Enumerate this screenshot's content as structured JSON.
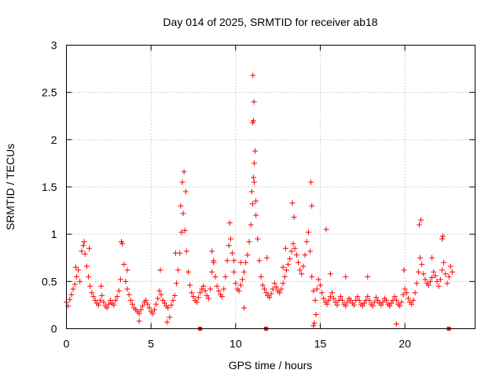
{
  "colors": {
    "series": "#ff0000",
    "grid": "#a0a0a0",
    "axis": "#000000"
  },
  "chart_data": {
    "type": "scatter",
    "title": "Day 014 of 2025, SRMTID for receiver ab18",
    "xlabel": "GPS time / hours",
    "ylabel": "SRMTID / TECUs",
    "xlim": [
      0,
      24.15
    ],
    "ylim": [
      0,
      3
    ],
    "x_ticks": [
      0,
      5,
      10,
      15,
      20
    ],
    "x_tick_labels": [
      "0",
      "5",
      "10",
      "15",
      "20"
    ],
    "y_ticks": [
      0,
      0.5,
      1,
      1.5,
      2,
      2.5,
      3
    ],
    "y_tick_labels": [
      "0",
      "0.5",
      "1",
      "1.5",
      "2",
      "2.5",
      "3"
    ],
    "grid": true,
    "marker": "plus",
    "series": [
      {
        "name": "SRMTID",
        "color": "#ff0000",
        "points": [
          [
            0.0,
            0.28
          ],
          [
            0.1,
            0.24
          ],
          [
            0.2,
            0.31
          ],
          [
            0.3,
            0.36
          ],
          [
            0.4,
            0.42
          ],
          [
            0.5,
            0.47
          ],
          [
            0.6,
            0.55
          ],
          [
            0.7,
            0.62
          ],
          [
            0.8,
            0.5
          ],
          [
            0.9,
            0.82
          ],
          [
            1.0,
            0.88
          ],
          [
            1.1,
            0.79
          ],
          [
            1.2,
            0.66
          ],
          [
            1.3,
            0.55
          ],
          [
            1.4,
            0.45
          ],
          [
            1.5,
            0.38
          ],
          [
            1.6,
            0.34
          ],
          [
            1.7,
            0.3
          ],
          [
            1.8,
            0.27
          ],
          [
            1.9,
            0.25
          ],
          [
            2.0,
            0.3
          ],
          [
            2.1,
            0.35
          ],
          [
            2.2,
            0.28
          ],
          [
            2.3,
            0.24
          ],
          [
            2.4,
            0.22
          ],
          [
            2.5,
            0.26
          ],
          [
            2.6,
            0.3
          ],
          [
            2.7,
            0.27
          ],
          [
            2.8,
            0.25
          ],
          [
            2.9,
            0.3
          ],
          [
            3.0,
            0.34
          ],
          [
            3.1,
            0.4
          ],
          [
            3.2,
            0.52
          ],
          [
            3.3,
            0.9
          ],
          [
            3.4,
            0.68
          ],
          [
            3.5,
            0.5
          ],
          [
            3.6,
            0.42
          ],
          [
            3.7,
            0.36
          ],
          [
            3.8,
            0.3
          ],
          [
            3.9,
            0.26
          ],
          [
            4.0,
            0.22
          ],
          [
            4.1,
            0.2
          ],
          [
            4.2,
            0.18
          ],
          [
            4.3,
            0.16
          ],
          [
            4.4,
            0.2
          ],
          [
            4.5,
            0.24
          ],
          [
            4.6,
            0.28
          ],
          [
            4.7,
            0.3
          ],
          [
            4.8,
            0.26
          ],
          [
            4.9,
            0.22
          ],
          [
            5.0,
            0.18
          ],
          [
            5.1,
            0.16
          ],
          [
            5.2,
            0.2
          ],
          [
            5.3,
            0.26
          ],
          [
            5.4,
            0.32
          ],
          [
            5.5,
            0.4
          ],
          [
            5.6,
            0.36
          ],
          [
            5.7,
            0.3
          ],
          [
            5.8,
            0.27
          ],
          [
            5.9,
            0.24
          ],
          [
            6.0,
            0.22
          ],
          [
            6.1,
            0.12
          ],
          [
            6.2,
            0.25
          ],
          [
            6.3,
            0.3
          ],
          [
            6.4,
            0.35
          ],
          [
            6.5,
            0.48
          ],
          [
            6.6,
            0.62
          ],
          [
            6.7,
            0.8
          ],
          [
            6.8,
            1.02
          ],
          [
            6.9,
            1.22
          ],
          [
            7.0,
            1.04
          ],
          [
            7.1,
            0.82
          ],
          [
            7.2,
            0.6
          ],
          [
            7.3,
            0.46
          ],
          [
            7.4,
            0.38
          ],
          [
            7.5,
            0.34
          ],
          [
            7.6,
            0.3
          ],
          [
            7.7,
            0.28
          ],
          [
            7.8,
            0.33
          ],
          [
            7.9,
            0.38
          ],
          [
            8.0,
            0.42
          ],
          [
            8.1,
            0.45
          ],
          [
            8.2,
            0.4
          ],
          [
            8.3,
            0.35
          ],
          [
            8.4,
            0.32
          ],
          [
            8.5,
            0.42
          ],
          [
            8.6,
            0.6
          ],
          [
            8.7,
            0.7
          ],
          [
            8.8,
            0.55
          ],
          [
            8.9,
            0.45
          ],
          [
            9.0,
            0.4
          ],
          [
            9.1,
            0.36
          ],
          [
            9.2,
            0.34
          ],
          [
            9.3,
            0.42
          ],
          [
            9.4,
            0.55
          ],
          [
            9.5,
            0.72
          ],
          [
            9.6,
            0.88
          ],
          [
            9.7,
            0.95
          ],
          [
            9.8,
            0.8
          ],
          [
            9.9,
            0.6
          ],
          [
            10.0,
            0.48
          ],
          [
            10.1,
            0.42
          ],
          [
            10.2,
            0.4
          ],
          [
            10.3,
            0.46
          ],
          [
            10.4,
            0.52
          ],
          [
            10.5,
            0.6
          ],
          [
            10.6,
            0.7
          ],
          [
            10.7,
            0.78
          ],
          [
            10.8,
            0.92
          ],
          [
            10.9,
            1.1
          ],
          [
            11.0,
            1.32
          ],
          [
            11.1,
            1.55
          ],
          [
            11.2,
            1.2
          ],
          [
            11.3,
            0.95
          ],
          [
            11.4,
            0.72
          ],
          [
            11.5,
            0.55
          ],
          [
            11.6,
            0.46
          ],
          [
            11.7,
            0.42
          ],
          [
            11.8,
            0.38
          ],
          [
            11.9,
            0.35
          ],
          [
            12.0,
            0.33
          ],
          [
            12.1,
            0.37
          ],
          [
            12.2,
            0.42
          ],
          [
            12.3,
            0.48
          ],
          [
            12.4,
            0.44
          ],
          [
            12.5,
            0.4
          ],
          [
            12.6,
            0.38
          ],
          [
            12.7,
            0.42
          ],
          [
            12.8,
            0.48
          ],
          [
            12.9,
            0.55
          ],
          [
            13.0,
            0.62
          ],
          [
            13.1,
            0.68
          ],
          [
            13.2,
            0.74
          ],
          [
            13.3,
            0.82
          ],
          [
            13.4,
            0.9
          ],
          [
            13.5,
            0.85
          ],
          [
            13.6,
            0.78
          ],
          [
            13.7,
            0.7
          ],
          [
            13.8,
            0.62
          ],
          [
            13.9,
            0.58
          ],
          [
            14.0,
            0.66
          ],
          [
            14.1,
            0.78
          ],
          [
            14.2,
            0.92
          ],
          [
            14.3,
            1.02
          ],
          [
            14.4,
            0.82
          ],
          [
            14.5,
            0.55
          ],
          [
            14.6,
            0.4
          ],
          [
            14.7,
            0.3
          ],
          [
            14.8,
            0.42
          ],
          [
            14.9,
            0.52
          ],
          [
            15.0,
            0.46
          ],
          [
            15.1,
            0.38
          ],
          [
            15.2,
            0.32
          ],
          [
            15.3,
            0.28
          ],
          [
            15.4,
            0.26
          ],
          [
            15.5,
            0.3
          ],
          [
            15.6,
            0.34
          ],
          [
            15.7,
            0.38
          ],
          [
            15.8,
            0.32
          ],
          [
            15.9,
            0.28
          ],
          [
            16.0,
            0.25
          ],
          [
            16.1,
            0.3
          ],
          [
            16.2,
            0.34
          ],
          [
            16.3,
            0.3
          ],
          [
            16.4,
            0.26
          ],
          [
            16.5,
            0.24
          ],
          [
            16.6,
            0.28
          ],
          [
            16.7,
            0.32
          ],
          [
            16.8,
            0.3
          ],
          [
            16.9,
            0.27
          ],
          [
            17.0,
            0.25
          ],
          [
            17.1,
            0.3
          ],
          [
            17.2,
            0.34
          ],
          [
            17.3,
            0.3
          ],
          [
            17.4,
            0.26
          ],
          [
            17.5,
            0.24
          ],
          [
            17.6,
            0.27
          ],
          [
            17.7,
            0.3
          ],
          [
            17.8,
            0.34
          ],
          [
            17.9,
            0.3
          ],
          [
            18.0,
            0.26
          ],
          [
            18.1,
            0.24
          ],
          [
            18.2,
            0.28
          ],
          [
            18.3,
            0.33
          ],
          [
            18.4,
            0.3
          ],
          [
            18.5,
            0.27
          ],
          [
            18.6,
            0.25
          ],
          [
            18.7,
            0.28
          ],
          [
            18.8,
            0.32
          ],
          [
            18.9,
            0.3
          ],
          [
            19.0,
            0.26
          ],
          [
            19.1,
            0.24
          ],
          [
            19.2,
            0.27
          ],
          [
            19.3,
            0.3
          ],
          [
            19.4,
            0.34
          ],
          [
            19.5,
            0.3
          ],
          [
            19.6,
            0.26
          ],
          [
            19.7,
            0.24
          ],
          [
            19.8,
            0.28
          ],
          [
            19.9,
            0.36
          ],
          [
            20.0,
            0.42
          ],
          [
            20.1,
            0.38
          ],
          [
            20.2,
            0.32
          ],
          [
            20.3,
            0.28
          ],
          [
            20.4,
            0.26
          ],
          [
            20.5,
            0.3
          ],
          [
            20.6,
            0.38
          ],
          [
            20.7,
            0.48
          ],
          [
            20.8,
            0.6
          ],
          [
            20.9,
            0.75
          ],
          [
            21.0,
            0.68
          ],
          [
            21.1,
            0.58
          ],
          [
            21.2,
            0.52
          ],
          [
            21.3,
            0.48
          ],
          [
            21.4,
            0.46
          ],
          [
            21.5,
            0.5
          ],
          [
            21.6,
            0.54
          ],
          [
            21.7,
            0.6
          ],
          [
            21.8,
            0.56
          ],
          [
            21.9,
            0.5
          ],
          [
            22.0,
            0.45
          ],
          [
            22.1,
            0.52
          ],
          [
            22.2,
            0.62
          ],
          [
            22.3,
            0.7
          ],
          [
            22.4,
            0.58
          ],
          [
            22.5,
            0.48
          ],
          [
            22.6,
            0.55
          ],
          [
            22.7,
            0.66
          ],
          [
            22.8,
            0.6
          ],
          [
            0.55,
            0.65
          ],
          [
            1.05,
            0.92
          ],
          [
            1.35,
            0.85
          ],
          [
            3.25,
            0.92
          ],
          [
            6.85,
            1.55
          ],
          [
            6.95,
            1.66
          ],
          [
            7.05,
            1.45
          ],
          [
            6.75,
            1.3
          ],
          [
            9.65,
            1.12
          ],
          [
            10.95,
            1.45
          ],
          [
            11.05,
            1.6
          ],
          [
            11.1,
            1.75
          ],
          [
            11.15,
            1.88
          ],
          [
            11.0,
            2.18
          ],
          [
            11.05,
            2.2
          ],
          [
            11.08,
            2.4
          ],
          [
            11.02,
            2.68
          ],
          [
            11.2,
            1.35
          ],
          [
            13.35,
            1.33
          ],
          [
            13.45,
            1.18
          ],
          [
            14.45,
            1.55
          ],
          [
            14.5,
            1.3
          ],
          [
            15.35,
            1.05
          ],
          [
            20.95,
            1.15
          ],
          [
            20.85,
            1.1
          ],
          [
            22.2,
            0.95
          ],
          [
            22.25,
            0.98
          ],
          [
            4.3,
            0.08
          ],
          [
            5.95,
            0.07
          ],
          [
            14.6,
            0.03
          ],
          [
            14.65,
            0.06
          ],
          [
            19.5,
            0.05
          ],
          [
            14.75,
            0.15
          ],
          [
            10.5,
            0.22
          ],
          [
            12.95,
            0.85
          ],
          [
            12.8,
            0.65
          ],
          [
            11.85,
            0.75
          ],
          [
            8.6,
            0.82
          ],
          [
            8.7,
            0.72
          ],
          [
            2.05,
            0.45
          ],
          [
            3.6,
            0.62
          ],
          [
            5.55,
            0.62
          ],
          [
            6.45,
            0.8
          ],
          [
            9.9,
            0.72
          ],
          [
            10.3,
            0.7
          ],
          [
            15.6,
            0.58
          ],
          [
            16.5,
            0.55
          ],
          [
            17.8,
            0.55
          ],
          [
            19.95,
            0.62
          ],
          [
            21.6,
            0.75
          ]
        ]
      },
      {
        "name": "zero-level markers",
        "color": "#ff0000",
        "marker": "square",
        "points": [
          [
            7.9,
            0.0
          ],
          [
            11.8,
            0.0
          ],
          [
            22.6,
            0.0
          ]
        ]
      }
    ]
  }
}
